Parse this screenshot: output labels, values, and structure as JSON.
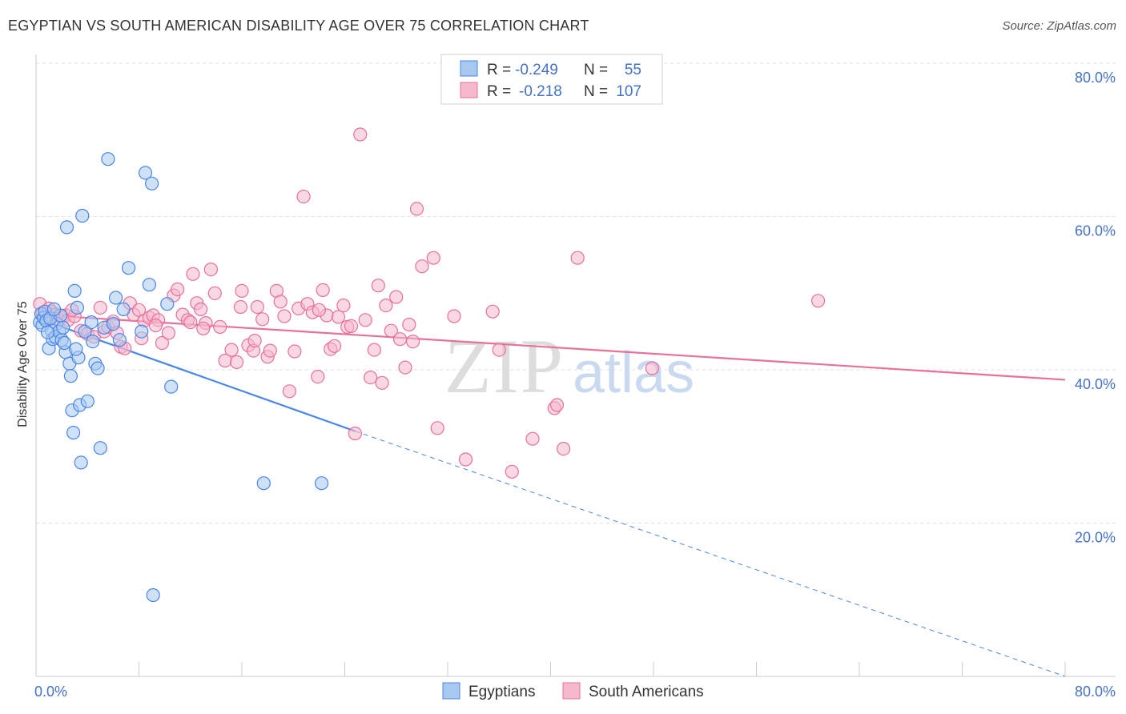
{
  "title": "EGYPTIAN VS SOUTH AMERICAN DISABILITY AGE OVER 75 CORRELATION CHART",
  "source": "Source: ZipAtlas.com",
  "watermark": "ZIPatlas",
  "colors": {
    "blue": "#4a86e8",
    "blue_fill": "#a8c8f0",
    "pink": "#e8709a",
    "pink_fill": "#f5b8cc",
    "axis_text": "#4472c4"
  },
  "legend": {
    "rows": [
      {
        "r_label": "R =",
        "r_value": "-0.249",
        "n_label": "N =",
        "n_value": "55"
      },
      {
        "r_label": "R =",
        "r_value": "-0.218",
        "n_label": "N =",
        "n_value": "107"
      }
    ]
  },
  "chart_data": {
    "type": "scatter",
    "title": "EGYPTIAN VS SOUTH AMERICAN DISABILITY AGE OVER 75 CORRELATION CHART",
    "xlabel": "",
    "ylabel": "Disability Age Over 75",
    "xlim": [
      0,
      80
    ],
    "ylim": [
      0,
      80
    ],
    "x_tick_labels": [
      "0.0%",
      "80.0%"
    ],
    "y_tick_labels": [
      "20.0%",
      "40.0%",
      "60.0%",
      "80.0%"
    ],
    "y_ticks": [
      20,
      40,
      60,
      80
    ],
    "grid": true,
    "legend_position": "top-center",
    "series": [
      {
        "name": "Egyptians",
        "color": "#4a86e8",
        "trend": {
          "x0": 0,
          "y0": 46.8,
          "x1": 24.8,
          "y1": 32.0,
          "dash_to_x": 80,
          "dash_to_y": 0
        },
        "points": [
          [
            0.3,
            46.2
          ],
          [
            0.4,
            47.3
          ],
          [
            0.5,
            45.8
          ],
          [
            0.6,
            46.8
          ],
          [
            0.7,
            47.6
          ],
          [
            0.8,
            46.4
          ],
          [
            1.0,
            42.8
          ],
          [
            1.2,
            45.1
          ],
          [
            1.3,
            44.0
          ],
          [
            1.5,
            44.3
          ],
          [
            1.6,
            46.0
          ],
          [
            1.8,
            45.0
          ],
          [
            2.0,
            43.9
          ],
          [
            2.1,
            45.5
          ],
          [
            2.3,
            42.3
          ],
          [
            2.4,
            58.6
          ],
          [
            2.6,
            40.8
          ],
          [
            2.7,
            39.2
          ],
          [
            2.8,
            34.7
          ],
          [
            2.9,
            31.8
          ],
          [
            3.0,
            50.3
          ],
          [
            3.2,
            48.1
          ],
          [
            3.3,
            41.6
          ],
          [
            3.4,
            35.4
          ],
          [
            3.5,
            27.9
          ],
          [
            3.6,
            60.1
          ],
          [
            3.8,
            45.0
          ],
          [
            4.0,
            35.9
          ],
          [
            4.3,
            46.2
          ],
          [
            4.4,
            43.7
          ],
          [
            4.6,
            40.8
          ],
          [
            4.8,
            40.2
          ],
          [
            5.0,
            29.8
          ],
          [
            5.3,
            45.5
          ],
          [
            5.6,
            67.5
          ],
          [
            6.0,
            46.0
          ],
          [
            6.2,
            49.4
          ],
          [
            6.5,
            43.9
          ],
          [
            6.8,
            47.9
          ],
          [
            7.2,
            53.3
          ],
          [
            8.2,
            45.0
          ],
          [
            8.5,
            65.7
          ],
          [
            8.8,
            51.1
          ],
          [
            9.0,
            64.3
          ],
          [
            9.1,
            10.6
          ],
          [
            10.2,
            48.6
          ],
          [
            10.5,
            37.8
          ],
          [
            17.7,
            25.2
          ],
          [
            22.2,
            25.2
          ],
          [
            1.1,
            46.7
          ],
          [
            1.9,
            47.1
          ],
          [
            0.9,
            44.9
          ],
          [
            2.2,
            43.5
          ],
          [
            3.1,
            42.7
          ],
          [
            1.4,
            47.9
          ]
        ]
      },
      {
        "name": "South Americans",
        "color": "#e8709a",
        "trend": {
          "x0": 0,
          "y0": 47.2,
          "x1": 80,
          "y1": 38.7
        },
        "points": [
          [
            0.3,
            48.6
          ],
          [
            0.5,
            47.4
          ],
          [
            0.8,
            46.8
          ],
          [
            1.0,
            48.0
          ],
          [
            1.2,
            47.6
          ],
          [
            1.5,
            47.2
          ],
          [
            1.8,
            46.6
          ],
          [
            2.0,
            46.9
          ],
          [
            2.3,
            47.1
          ],
          [
            2.5,
            46.5
          ],
          [
            3.0,
            47.0
          ],
          [
            3.5,
            45.1
          ],
          [
            4.0,
            44.7
          ],
          [
            4.5,
            44.3
          ],
          [
            5.0,
            48.1
          ],
          [
            5.3,
            45.0
          ],
          [
            5.6,
            45.6
          ],
          [
            6.0,
            46.3
          ],
          [
            6.3,
            44.8
          ],
          [
            6.6,
            43.0
          ],
          [
            6.9,
            42.8
          ],
          [
            7.3,
            48.7
          ],
          [
            7.6,
            47.2
          ],
          [
            8.0,
            47.8
          ],
          [
            8.4,
            46.4
          ],
          [
            8.8,
            46.8
          ],
          [
            9.1,
            47.1
          ],
          [
            9.5,
            46.5
          ],
          [
            9.8,
            43.5
          ],
          [
            10.3,
            44.8
          ],
          [
            10.7,
            49.7
          ],
          [
            11.0,
            50.5
          ],
          [
            11.4,
            47.2
          ],
          [
            11.8,
            46.5
          ],
          [
            12.2,
            52.5
          ],
          [
            12.5,
            48.7
          ],
          [
            12.8,
            47.9
          ],
          [
            13.2,
            46.1
          ],
          [
            13.6,
            53.1
          ],
          [
            13.9,
            50.0
          ],
          [
            14.3,
            45.6
          ],
          [
            14.7,
            41.2
          ],
          [
            15.2,
            42.6
          ],
          [
            15.6,
            41.0
          ],
          [
            16.0,
            50.3
          ],
          [
            16.5,
            43.2
          ],
          [
            16.9,
            42.5
          ],
          [
            17.2,
            48.2
          ],
          [
            17.6,
            46.6
          ],
          [
            18.0,
            41.7
          ],
          [
            18.2,
            42.5
          ],
          [
            18.7,
            50.3
          ],
          [
            19.0,
            48.9
          ],
          [
            19.3,
            47.0
          ],
          [
            19.7,
            37.2
          ],
          [
            20.1,
            42.4
          ],
          [
            20.4,
            48.0
          ],
          [
            20.8,
            62.6
          ],
          [
            21.1,
            48.6
          ],
          [
            21.5,
            47.5
          ],
          [
            21.9,
            39.1
          ],
          [
            22.3,
            50.4
          ],
          [
            22.6,
            47.1
          ],
          [
            22.9,
            42.7
          ],
          [
            23.2,
            43.1
          ],
          [
            23.5,
            46.9
          ],
          [
            23.9,
            48.4
          ],
          [
            24.2,
            45.6
          ],
          [
            24.5,
            45.7
          ],
          [
            24.8,
            31.7
          ],
          [
            25.2,
            70.7
          ],
          [
            25.6,
            46.5
          ],
          [
            26.0,
            39.0
          ],
          [
            26.3,
            42.6
          ],
          [
            26.6,
            51.0
          ],
          [
            26.9,
            38.3
          ],
          [
            27.2,
            48.4
          ],
          [
            27.6,
            45.1
          ],
          [
            28.0,
            49.5
          ],
          [
            28.3,
            44.0
          ],
          [
            28.7,
            40.3
          ],
          [
            29.0,
            45.9
          ],
          [
            29.3,
            43.7
          ],
          [
            29.6,
            61.0
          ],
          [
            30.0,
            53.5
          ],
          [
            30.9,
            54.6
          ],
          [
            31.2,
            32.4
          ],
          [
            32.5,
            47.0
          ],
          [
            33.4,
            28.3
          ],
          [
            35.5,
            47.6
          ],
          [
            36.0,
            42.6
          ],
          [
            37.0,
            26.7
          ],
          [
            38.6,
            31.0
          ],
          [
            40.3,
            35.0
          ],
          [
            40.5,
            35.4
          ],
          [
            41.0,
            29.7
          ],
          [
            42.1,
            54.6
          ],
          [
            47.9,
            40.2
          ],
          [
            60.8,
            49.0
          ],
          [
            22.0,
            47.8
          ],
          [
            15.9,
            48.2
          ],
          [
            13.0,
            45.4
          ],
          [
            9.3,
            45.8
          ],
          [
            12.0,
            46.2
          ],
          [
            17.0,
            43.8
          ],
          [
            8.2,
            44.1
          ],
          [
            2.8,
            47.8
          ]
        ]
      }
    ]
  },
  "bottom_legend": [
    {
      "label": "Egyptians"
    },
    {
      "label": "South Americans"
    }
  ]
}
